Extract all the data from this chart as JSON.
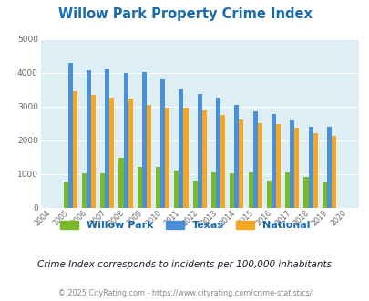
{
  "title": "Willow Park Property Crime Index",
  "years": [
    "2004",
    "2005",
    "2006",
    "2007",
    "2008",
    "2009",
    "2010",
    "2011",
    "2012",
    "2013",
    "2014",
    "2015",
    "2016",
    "2017",
    "2018",
    "2019",
    "2020"
  ],
  "willow_park": [
    0,
    790,
    1010,
    1010,
    1470,
    1220,
    1220,
    1110,
    800,
    1060,
    1030,
    1060,
    800,
    1060,
    900,
    740,
    0
  ],
  "texas": [
    0,
    4300,
    4080,
    4100,
    4000,
    4020,
    3800,
    3500,
    3380,
    3270,
    3060,
    2860,
    2780,
    2590,
    2400,
    2400,
    0
  ],
  "national": [
    0,
    3450,
    3360,
    3270,
    3250,
    3060,
    2970,
    2960,
    2900,
    2750,
    2620,
    2510,
    2470,
    2360,
    2210,
    2140,
    0
  ],
  "ylim": [
    0,
    5000
  ],
  "yticks": [
    0,
    1000,
    2000,
    3000,
    4000,
    5000
  ],
  "color_willow": "#7aba28",
  "color_texas": "#4a90d9",
  "color_national": "#f5a623",
  "bg_color": "#ddeef5",
  "subtitle": "Crime Index corresponds to incidents per 100,000 inhabitants",
  "footer": "© 2025 CityRating.com - https://www.cityrating.com/crime-statistics/",
  "legend_labels": [
    "Willow Park",
    "Texas",
    "National"
  ],
  "title_color": "#1a6aad",
  "subtitle_color": "#1a1a2e",
  "footer_color": "#888888"
}
